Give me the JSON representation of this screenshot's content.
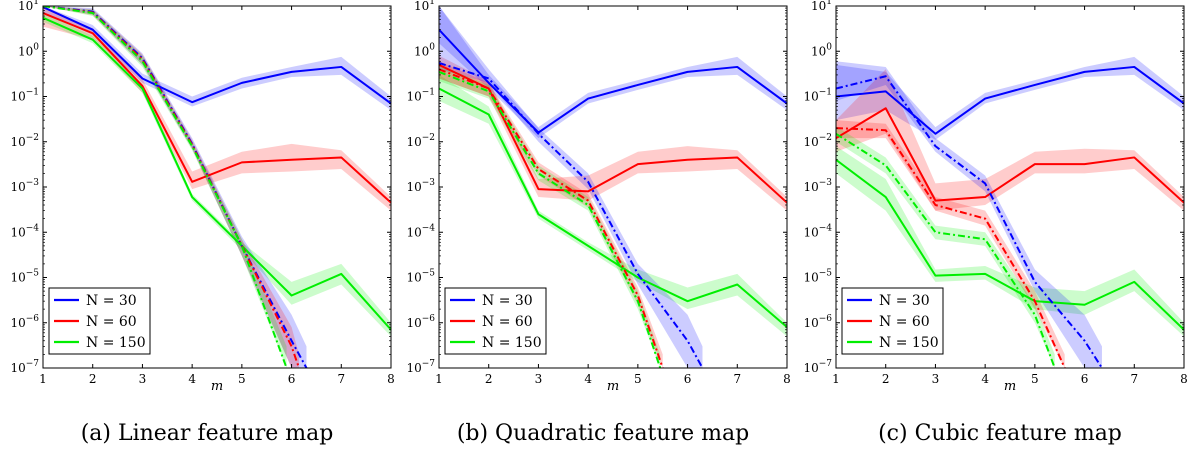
{
  "chart_data": [
    {
      "type": "line",
      "caption": "(a) Linear feature map",
      "xlabel": "m",
      "ylabel": "",
      "xlim": [
        1,
        8
      ],
      "ylim": [
        1e-07,
        10
      ],
      "yscale": "log",
      "x_ticks": [
        "1",
        "2",
        "3",
        "4",
        "5",
        "6",
        "7",
        "8"
      ],
      "y_ticks": [
        {
          "base": "10",
          "exp": "−7",
          "value": 1e-07
        },
        {
          "base": "10",
          "exp": "−6",
          "value": 1e-06
        },
        {
          "base": "10",
          "exp": "−5",
          "value": 1e-05
        },
        {
          "base": "10",
          "exp": "−4",
          "value": 0.0001
        },
        {
          "base": "10",
          "exp": "−3",
          "value": 0.001
        },
        {
          "base": "10",
          "exp": "−2",
          "value": 0.01
        },
        {
          "base": "10",
          "exp": "−1",
          "value": 0.1
        },
        {
          "base": "10",
          "exp": "0",
          "value": 1
        },
        {
          "base": "10",
          "exp": "1",
          "value": 10
        }
      ],
      "grid": false,
      "legend_position": "bottom-left",
      "legend": [
        "N = 30",
        "N = 60",
        "N = 150"
      ],
      "series": [
        {
          "name": "N = 30",
          "style": "solid",
          "color": "#0000ff",
          "x": [
            1,
            2,
            3,
            4,
            5,
            6,
            7,
            8
          ],
          "y": [
            9.5,
            3.0,
            0.25,
            0.075,
            0.2,
            0.35,
            0.45,
            0.07
          ],
          "band_low": [
            7.0,
            2.3,
            0.2,
            0.06,
            0.15,
            0.27,
            0.3,
            0.05
          ],
          "band_high": [
            10,
            3.8,
            0.32,
            0.1,
            0.26,
            0.45,
            0.75,
            0.1
          ]
        },
        {
          "name": "N = 60",
          "style": "solid",
          "color": "#ff0000",
          "x": [
            1,
            2,
            3,
            4,
            5,
            6,
            7,
            8
          ],
          "y": [
            7.0,
            2.5,
            0.17,
            0.0013,
            0.0035,
            0.004,
            0.0045,
            0.00045
          ],
          "band_low": [
            3.5,
            1.8,
            0.12,
            0.0009,
            0.002,
            0.0022,
            0.0025,
            0.0003
          ],
          "band_high": [
            10,
            3.2,
            0.24,
            0.0022,
            0.006,
            0.009,
            0.0065,
            0.0006
          ]
        },
        {
          "name": "N = 150",
          "style": "solid",
          "color": "#00ee00",
          "x": [
            1,
            2,
            3,
            4,
            5,
            6,
            7,
            8
          ],
          "y": [
            5.5,
            1.8,
            0.15,
            0.0006,
            5e-05,
            4e-06,
            1.2e-05,
            7e-07
          ],
          "band_low": [
            4.5,
            1.5,
            0.12,
            0.0005,
            4e-05,
            2.5e-06,
            7e-06,
            5e-07
          ],
          "band_high": [
            7.0,
            2.2,
            0.19,
            0.0007,
            6e-05,
            8e-06,
            2e-05,
            1e-06
          ]
        },
        {
          "style": "dashdot",
          "color": "#0000ff",
          "x": [
            1,
            2,
            3,
            4,
            5,
            6,
            6.3
          ],
          "y": [
            10,
            7.5,
            0.7,
            0.009,
            5e-05,
            4e-07,
            1e-07
          ],
          "band_low": [
            10,
            6.5,
            0.5,
            0.007,
            3e-05,
            1e-07,
            1e-07
          ],
          "band_high": [
            10,
            9.0,
            0.9,
            0.012,
            8e-05,
            1.5e-06,
            3e-07
          ]
        },
        {
          "style": "dashdot",
          "color": "#ff0000",
          "x": [
            1,
            2,
            3,
            4,
            5,
            6,
            6.15
          ],
          "y": [
            10,
            7.2,
            0.65,
            0.0085,
            5e-05,
            3e-07,
            1e-07
          ],
          "band_low": [
            10,
            6.2,
            0.5,
            0.007,
            3e-05,
            1e-07,
            1e-07
          ],
          "band_high": [
            10,
            8.5,
            0.85,
            0.011,
            7e-05,
            8e-07,
            2e-07
          ]
        },
        {
          "style": "dashdot",
          "color": "#00ee00",
          "x": [
            1,
            2,
            3,
            4,
            5,
            5.9
          ],
          "y": [
            10,
            7.0,
            0.6,
            0.008,
            5e-05,
            1e-07
          ],
          "band_low": [
            10,
            6.0,
            0.45,
            0.0065,
            3e-05,
            1e-07
          ],
          "band_high": [
            10,
            8.3,
            0.8,
            0.01,
            7e-05,
            3e-07
          ]
        }
      ]
    },
    {
      "type": "line",
      "caption": "(b) Quadratic feature map",
      "xlabel": "m",
      "ylabel": "",
      "xlim": [
        1,
        8
      ],
      "ylim": [
        1e-07,
        10
      ],
      "yscale": "log",
      "x_ticks": [
        "1",
        "2",
        "3",
        "4",
        "5",
        "6",
        "7",
        "8"
      ],
      "y_ticks": [
        {
          "base": "10",
          "exp": "−7",
          "value": 1e-07
        },
        {
          "base": "10",
          "exp": "−6",
          "value": 1e-06
        },
        {
          "base": "10",
          "exp": "−5",
          "value": 1e-05
        },
        {
          "base": "10",
          "exp": "−4",
          "value": 0.0001
        },
        {
          "base": "10",
          "exp": "−3",
          "value": 0.001
        },
        {
          "base": "10",
          "exp": "−2",
          "value": 0.01
        },
        {
          "base": "10",
          "exp": "−1",
          "value": 0.1
        },
        {
          "base": "10",
          "exp": "0",
          "value": 1
        },
        {
          "base": "10",
          "exp": "1",
          "value": 10
        }
      ],
      "grid": false,
      "legend_position": "bottom-left",
      "legend": [
        "N = 30",
        "N = 60",
        "N = 150"
      ],
      "series": [
        {
          "name": "N = 30",
          "style": "solid",
          "color": "#0000ff",
          "x": [
            1,
            2,
            3,
            4,
            5,
            6,
            7,
            8
          ],
          "y": [
            3.0,
            0.2,
            0.016,
            0.09,
            0.18,
            0.35,
            0.45,
            0.07
          ],
          "band_low": [
            1.5,
            0.15,
            0.012,
            0.07,
            0.14,
            0.27,
            0.3,
            0.05
          ],
          "band_high": [
            10,
            0.3,
            0.021,
            0.12,
            0.23,
            0.45,
            0.75,
            0.1
          ]
        },
        {
          "name": "N = 60",
          "style": "solid",
          "color": "#ff0000",
          "x": [
            1,
            2,
            3,
            4,
            5,
            6,
            7,
            8
          ],
          "y": [
            0.5,
            0.15,
            0.0009,
            0.0008,
            0.0032,
            0.004,
            0.0045,
            0.00045
          ],
          "band_low": [
            0.25,
            0.1,
            0.0006,
            0.0005,
            0.002,
            0.0022,
            0.0025,
            0.0003
          ],
          "band_high": [
            0.8,
            0.22,
            0.0015,
            0.0018,
            0.006,
            0.008,
            0.0065,
            0.0006
          ]
        },
        {
          "name": "N = 150",
          "style": "solid",
          "color": "#00ee00",
          "x": [
            1,
            2,
            3,
            4,
            5,
            6,
            7,
            8
          ],
          "y": [
            0.15,
            0.04,
            0.00025,
            5e-05,
            1e-05,
            3e-06,
            7e-06,
            8e-07
          ],
          "band_low": [
            0.08,
            0.025,
            0.0002,
            4e-05,
            8e-06,
            2e-06,
            4e-06,
            5e-07
          ],
          "band_high": [
            0.3,
            0.06,
            0.0003,
            6e-05,
            1.5e-05,
            6e-06,
            1.2e-05,
            1e-06
          ]
        },
        {
          "style": "dashdot",
          "color": "#0000ff",
          "x": [
            1,
            2,
            3,
            4,
            5,
            6,
            6.3
          ],
          "y": [
            0.55,
            0.25,
            0.015,
            0.0013,
            1.2e-05,
            4e-07,
            1e-07
          ],
          "band_low": [
            0.4,
            0.2,
            0.01,
            0.0009,
            7e-06,
            1e-07,
            1e-07
          ],
          "band_high": [
            10,
            0.4,
            0.02,
            0.002,
            2e-05,
            1.5e-06,
            3e-07
          ]
        },
        {
          "style": "dashdot",
          "color": "#ff0000",
          "x": [
            1,
            2,
            3,
            4,
            5,
            5.5
          ],
          "y": [
            0.4,
            0.15,
            0.0025,
            0.0005,
            4e-06,
            1e-07
          ],
          "band_low": [
            0.25,
            0.1,
            0.0018,
            0.00035,
            2.5e-06,
            1e-07
          ],
          "band_high": [
            0.6,
            0.2,
            0.0035,
            0.0007,
            6e-06,
            2e-07
          ]
        },
        {
          "style": "dashdot",
          "color": "#00ee00",
          "x": [
            1,
            2,
            3,
            4,
            5,
            5.45
          ],
          "y": [
            0.35,
            0.13,
            0.002,
            0.0004,
            3e-06,
            1e-07
          ],
          "band_low": [
            0.22,
            0.09,
            0.0014,
            0.0003,
            2e-06,
            1e-07
          ],
          "band_high": [
            0.5,
            0.18,
            0.003,
            0.0006,
            5e-06,
            2e-07
          ]
        }
      ]
    },
    {
      "type": "line",
      "caption": "(c) Cubic feature map",
      "xlabel": "m",
      "ylabel": "",
      "xlim": [
        1,
        8
      ],
      "ylim": [
        1e-07,
        10
      ],
      "yscale": "log",
      "x_ticks": [
        "1",
        "2",
        "3",
        "4",
        "5",
        "6",
        "7",
        "8"
      ],
      "y_ticks": [
        {
          "base": "10",
          "exp": "−7",
          "value": 1e-07
        },
        {
          "base": "10",
          "exp": "−6",
          "value": 1e-06
        },
        {
          "base": "10",
          "exp": "−5",
          "value": 1e-05
        },
        {
          "base": "10",
          "exp": "−4",
          "value": 0.0001
        },
        {
          "base": "10",
          "exp": "−3",
          "value": 0.001
        },
        {
          "base": "10",
          "exp": "−2",
          "value": 0.01
        },
        {
          "base": "10",
          "exp": "−1",
          "value": 0.1
        },
        {
          "base": "10",
          "exp": "0",
          "value": 1
        },
        {
          "base": "10",
          "exp": "1",
          "value": 10
        }
      ],
      "grid": false,
      "legend_position": "bottom-left",
      "legend": [
        "N = 30",
        "N = 60",
        "N = 150"
      ],
      "series": [
        {
          "name": "N = 30",
          "style": "solid",
          "color": "#0000ff",
          "x": [
            1,
            2,
            3,
            4,
            5,
            6,
            7,
            8
          ],
          "y": [
            0.1,
            0.13,
            0.015,
            0.09,
            0.18,
            0.35,
            0.45,
            0.07
          ],
          "band_low": [
            0.03,
            0.05,
            0.011,
            0.07,
            0.14,
            0.27,
            0.3,
            0.05
          ],
          "band_high": [
            0.5,
            0.35,
            0.021,
            0.12,
            0.23,
            0.45,
            0.75,
            0.1
          ]
        },
        {
          "name": "N = 60",
          "style": "solid",
          "color": "#ff0000",
          "x": [
            1,
            2,
            3,
            4,
            5,
            6,
            7,
            8
          ],
          "y": [
            0.012,
            0.055,
            0.0005,
            0.0006,
            0.0032,
            0.0032,
            0.0045,
            0.00045
          ],
          "band_low": [
            0.006,
            0.015,
            0.0003,
            0.0004,
            0.002,
            0.002,
            0.0025,
            0.0003
          ],
          "band_high": [
            0.03,
            0.4,
            0.0012,
            0.0015,
            0.006,
            0.007,
            0.0065,
            0.0006
          ]
        },
        {
          "name": "N = 150",
          "style": "solid",
          "color": "#00ee00",
          "x": [
            1,
            2,
            3,
            4,
            5,
            6,
            7,
            8
          ],
          "y": [
            0.004,
            0.0006,
            1.1e-05,
            1.2e-05,
            3e-06,
            2.5e-06,
            8e-06,
            7e-07
          ],
          "band_low": [
            0.002,
            0.0003,
            8e-06,
            9e-06,
            2e-06,
            1.5e-06,
            5e-06,
            5e-07
          ],
          "band_high": [
            0.008,
            0.0015,
            1.5e-05,
            1.8e-05,
            6e-06,
            5e-06,
            1.5e-05,
            1e-06
          ]
        },
        {
          "style": "dashdot",
          "color": "#0000ff",
          "x": [
            1,
            2,
            3,
            4,
            5,
            6,
            6.35
          ],
          "y": [
            0.15,
            0.28,
            0.008,
            0.0012,
            8e-06,
            4e-07,
            1e-07
          ],
          "band_low": [
            0.08,
            0.18,
            0.006,
            0.0008,
            5e-06,
            1e-07,
            1e-07
          ],
          "band_high": [
            0.6,
            0.45,
            0.012,
            0.0018,
            1.5e-05,
            1.5e-06,
            3e-07
          ]
        },
        {
          "style": "dashdot",
          "color": "#ff0000",
          "x": [
            1,
            2,
            3,
            4,
            5,
            5.6
          ],
          "y": [
            0.02,
            0.018,
            0.0004,
            0.0002,
            3e-06,
            1e-07
          ],
          "band_low": [
            0.012,
            0.012,
            0.0003,
            0.00014,
            2e-06,
            1e-07
          ],
          "band_high": [
            0.03,
            0.025,
            0.0006,
            0.0003,
            5e-06,
            2e-07
          ]
        },
        {
          "style": "dashdot",
          "color": "#00ee00",
          "x": [
            1,
            2,
            3,
            4,
            5,
            5.4
          ],
          "y": [
            0.015,
            0.003,
            0.0001,
            7e-05,
            1.5e-06,
            1e-07
          ],
          "band_low": [
            0.01,
            0.002,
            7e-05,
            5e-05,
            1e-06,
            1e-07
          ],
          "band_high": [
            0.022,
            0.0045,
            0.00014,
            0.0001,
            2.5e-06,
            2e-07
          ]
        }
      ]
    }
  ]
}
